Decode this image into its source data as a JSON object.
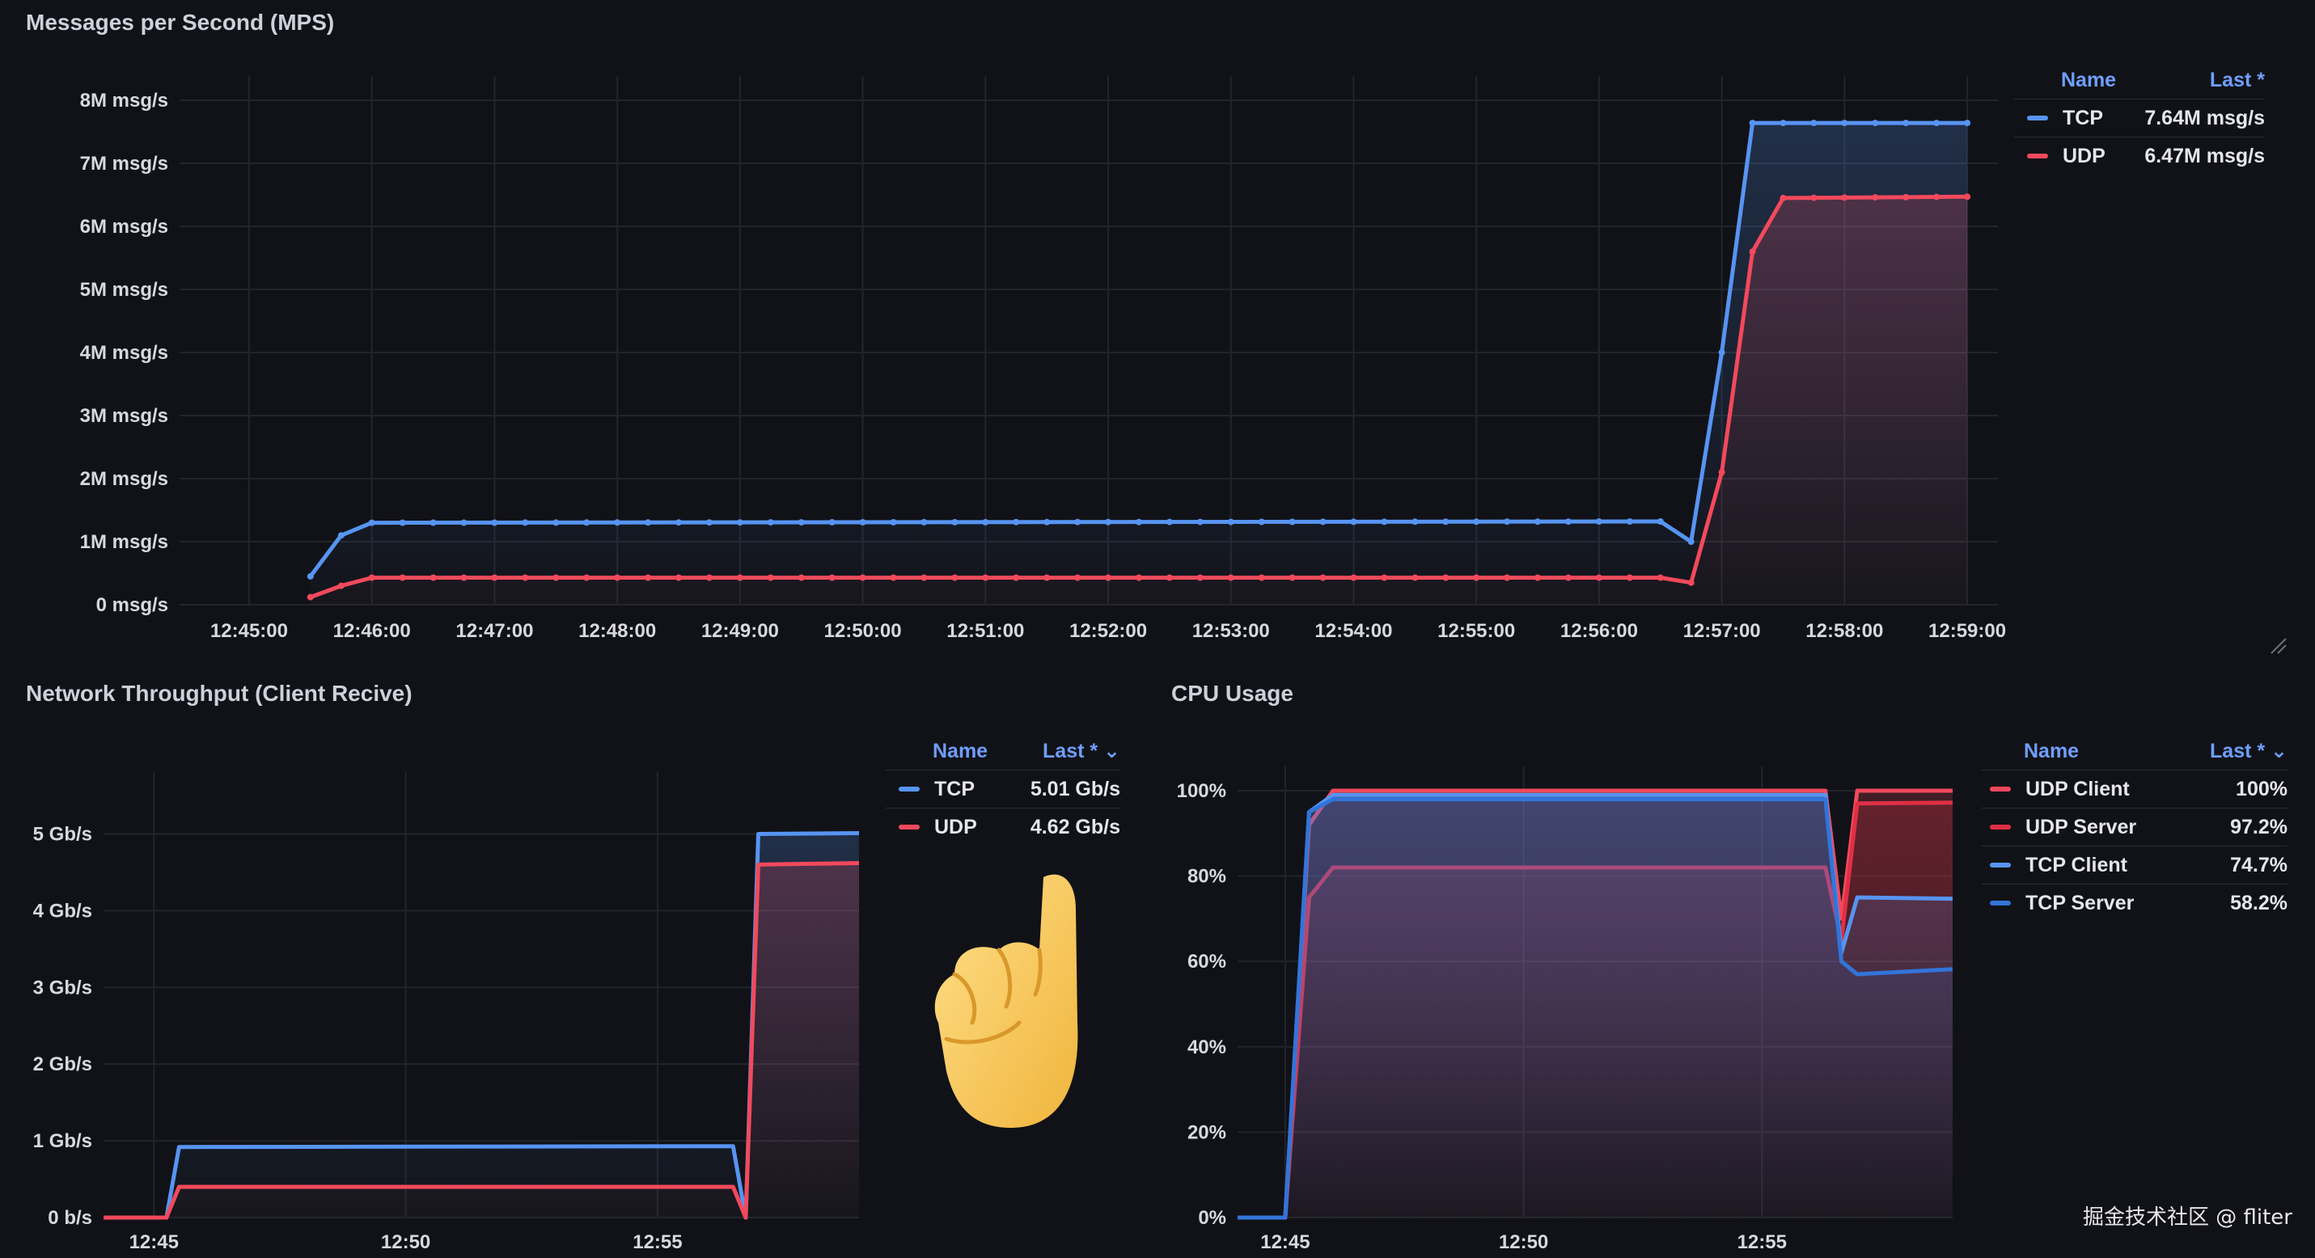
{
  "panels": {
    "mps": {
      "title": "Messages per Second (MPS)",
      "legend_name_header": "Name",
      "legend_last_header": "Last *",
      "legend": [
        {
          "name": "TCP",
          "last": "7.64M msg/s"
        },
        {
          "name": "UDP",
          "last": "6.47M msg/s"
        }
      ]
    },
    "net": {
      "title": "Network Throughput (Client Recive)",
      "legend_name_header": "Name",
      "legend_last_header": "Last * ⌄",
      "legend": [
        {
          "name": "TCP",
          "last": "5.01 Gb/s"
        },
        {
          "name": "UDP",
          "last": "4.62 Gb/s"
        }
      ]
    },
    "cpu": {
      "title": "CPU Usage",
      "legend_name_header": "Name",
      "legend_last_header": "Last * ⌄",
      "legend": [
        {
          "name": "UDP Client",
          "last": "100%"
        },
        {
          "name": "UDP Server",
          "last": "97.2%"
        },
        {
          "name": "TCP Client",
          "last": "74.7%"
        },
        {
          "name": "TCP Server",
          "last": "58.2%"
        }
      ]
    }
  },
  "watermark": "掘金技术社区 @ fliter",
  "colors": {
    "tcp": "#5794f2",
    "udp": "#f2495c",
    "background": "#111217"
  },
  "chart_data": [
    {
      "id": "mps",
      "type": "line",
      "title": "Messages per Second (MPS)",
      "x_unit": "time",
      "xlim": [
        "12:44:26",
        "12:59:15"
      ],
      "x_ticks": [
        "12:45:00",
        "12:46:00",
        "12:47:00",
        "12:48:00",
        "12:49:00",
        "12:50:00",
        "12:51:00",
        "12:52:00",
        "12:53:00",
        "12:54:00",
        "12:55:00",
        "12:56:00",
        "12:57:00",
        "12:58:00",
        "12:59:00"
      ],
      "ylim": [
        0,
        8
      ],
      "y_unit": "M msg/s",
      "y_ticks": [
        "0 msg/s",
        "1M msg/s",
        "2M msg/s",
        "3M msg/s",
        "4M msg/s",
        "5M msg/s",
        "6M msg/s",
        "7M msg/s",
        "8M msg/s"
      ],
      "grid": true,
      "legend_position": "right",
      "series": [
        {
          "name": "TCP",
          "color": "#5794f2",
          "x": [
            "12:45:30",
            "12:45:45",
            "12:46:00",
            "12:56:30",
            "12:56:45",
            "12:57:00",
            "12:57:15",
            "12:59:00"
          ],
          "values": [
            0.45,
            1.1,
            1.3,
            1.32,
            1.0,
            4.0,
            7.64,
            7.64
          ]
        },
        {
          "name": "UDP",
          "color": "#f2495c",
          "x": [
            "12:45:30",
            "12:45:45",
            "12:46:00",
            "12:56:30",
            "12:56:45",
            "12:57:00",
            "12:57:15",
            "12:57:30",
            "12:59:00"
          ],
          "values": [
            0.12,
            0.3,
            0.43,
            0.43,
            0.35,
            2.1,
            5.6,
            6.45,
            6.47
          ]
        }
      ]
    },
    {
      "id": "net",
      "type": "line",
      "title": "Network Throughput (Client Recive)",
      "x_unit": "time",
      "xlim": [
        "12:44:00",
        "12:59:00"
      ],
      "x_ticks": [
        "12:45",
        "12:50",
        "12:55"
      ],
      "ylim": [
        0,
        5.5
      ],
      "y_unit": "Gb/s",
      "y_ticks": [
        "0 b/s",
        "1 Gb/s",
        "2 Gb/s",
        "3 Gb/s",
        "4 Gb/s",
        "5 Gb/s"
      ],
      "grid": true,
      "legend_position": "right",
      "series": [
        {
          "name": "TCP",
          "color": "#5794f2",
          "x": [
            "12:44:00",
            "12:45:15",
            "12:45:30",
            "12:56:30",
            "12:56:45",
            "12:57:00",
            "12:59:00"
          ],
          "values": [
            0,
            0,
            0.92,
            0.93,
            0,
            5.0,
            5.01
          ]
        },
        {
          "name": "UDP",
          "color": "#f2495c",
          "x": [
            "12:44:00",
            "12:45:15",
            "12:45:30",
            "12:56:30",
            "12:56:45",
            "12:57:00",
            "12:59:00"
          ],
          "values": [
            0,
            0,
            0.4,
            0.4,
            0,
            4.6,
            4.62
          ]
        }
      ]
    },
    {
      "id": "cpu",
      "type": "line",
      "title": "CPU Usage",
      "x_unit": "time",
      "xlim": [
        "12:44:00",
        "12:59:00"
      ],
      "x_ticks": [
        "12:45",
        "12:50",
        "12:55"
      ],
      "ylim": [
        0,
        100
      ],
      "y_unit": "%",
      "y_ticks": [
        "0%",
        "20%",
        "40%",
        "60%",
        "80%",
        "100%"
      ],
      "grid": true,
      "legend_position": "right",
      "series": [
        {
          "name": "UDP Client",
          "color": "#f2495c",
          "x": [
            "12:44:00",
            "12:45:00",
            "12:45:30",
            "12:46:00",
            "12:56:20",
            "12:56:40",
            "12:57:00",
            "12:59:00"
          ],
          "values": [
            0,
            0,
            92,
            100,
            100,
            70,
            100,
            100
          ]
        },
        {
          "name": "UDP Server",
          "color": "#e02f44",
          "x": [
            "12:44:00",
            "12:45:00",
            "12:45:30",
            "12:46:00",
            "12:56:20",
            "12:56:40",
            "12:57:00",
            "12:59:00"
          ],
          "values": [
            0,
            0,
            75,
            82,
            82,
            65,
            97,
            97.2
          ]
        },
        {
          "name": "TCP Client",
          "color": "#5794f2",
          "x": [
            "12:44:00",
            "12:45:00",
            "12:45:30",
            "12:46:00",
            "12:56:20",
            "12:56:40",
            "12:57:00",
            "12:59:00"
          ],
          "values": [
            0,
            0,
            95,
            99,
            99,
            62,
            75,
            74.7
          ]
        },
        {
          "name": "TCP Server",
          "color": "#3274d9",
          "x": [
            "12:44:00",
            "12:45:00",
            "12:45:30",
            "12:46:00",
            "12:56:20",
            "12:56:40",
            "12:57:00",
            "12:59:00"
          ],
          "values": [
            0,
            0,
            95,
            98,
            98,
            60,
            57,
            58.2
          ]
        }
      ]
    }
  ]
}
